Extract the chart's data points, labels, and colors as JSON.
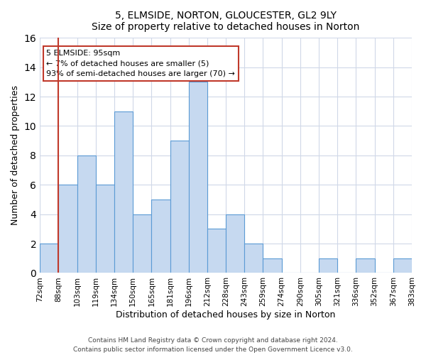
{
  "title": "5, ELMSIDE, NORTON, GLOUCESTER, GL2 9LY",
  "subtitle": "Size of property relative to detached houses in Norton",
  "xlabel": "Distribution of detached houses by size in Norton",
  "ylabel": "Number of detached properties",
  "bin_labels": [
    "72sqm",
    "88sqm",
    "103sqm",
    "119sqm",
    "134sqm",
    "150sqm",
    "165sqm",
    "181sqm",
    "196sqm",
    "212sqm",
    "228sqm",
    "243sqm",
    "259sqm",
    "274sqm",
    "290sqm",
    "305sqm",
    "321sqm",
    "336sqm",
    "352sqm",
    "367sqm",
    "383sqm"
  ],
  "bar_values": [
    2,
    6,
    8,
    6,
    11,
    4,
    5,
    9,
    13,
    3,
    4,
    2,
    1,
    0,
    0,
    1,
    0,
    1,
    0,
    1
  ],
  "bar_color": "#c6d9f0",
  "bar_edge_color": "#5b9bd5",
  "reference_line_x": 1,
  "reference_line_color": "#c0392b",
  "annotation_title": "5 ELMSIDE: 95sqm",
  "annotation_line1": "← 7% of detached houses are smaller (5)",
  "annotation_line2": "93% of semi-detached houses are larger (70) →",
  "annotation_box_color": "#c0392b",
  "ylim": [
    0,
    16
  ],
  "yticks": [
    0,
    2,
    4,
    6,
    8,
    10,
    12,
    14,
    16
  ],
  "footer1": "Contains HM Land Registry data © Crown copyright and database right 2024.",
  "footer2": "Contains public sector information licensed under the Open Government Licence v3.0."
}
